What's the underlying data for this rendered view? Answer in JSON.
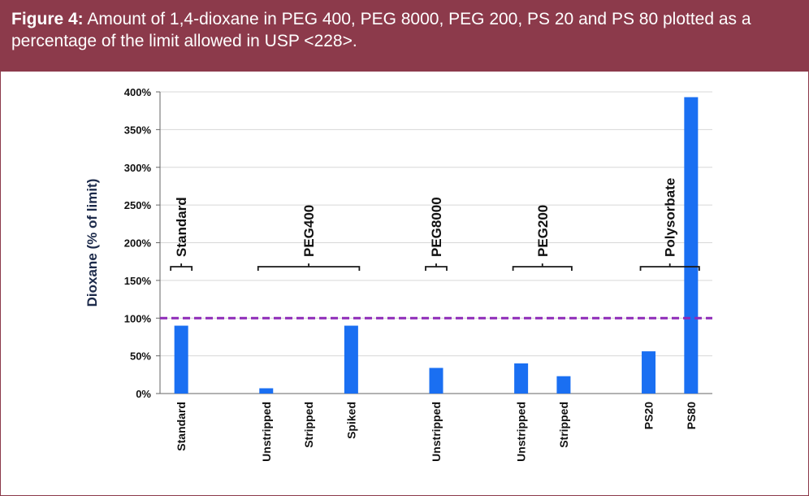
{
  "caption": {
    "label": "Figure 4:",
    "text": " Amount of 1,4-dioxane in PEG 400, PEG 8000, PEG 200, PS 20 and PS 80 plotted as a percentage of the limit allowed in USP <228>."
  },
  "colors": {
    "caption_bg": "#8c3a4b",
    "bar": "#1a6ff2",
    "limit_line": "#8e2ab8"
  },
  "chart_data": {
    "type": "bar",
    "ylabel": "Dioxane (% of limit)",
    "ylim": [
      0,
      400
    ],
    "yticks": [
      0,
      50,
      100,
      150,
      200,
      250,
      300,
      350,
      400
    ],
    "ytick_labels": [
      "0%",
      "50%",
      "100%",
      "150%",
      "200%",
      "250%",
      "300%",
      "350%",
      "400%"
    ],
    "grid": true,
    "categories": [
      "Standard",
      "",
      "Unstripped",
      "Stripped",
      "Spiked",
      "",
      "Unstripped",
      "",
      "Unstripped",
      "Stripped",
      "",
      "PS20",
      "PS80"
    ],
    "values": [
      90,
      null,
      7,
      0,
      90,
      null,
      34,
      null,
      40,
      23,
      null,
      56,
      393
    ],
    "limit_line": {
      "value": 100,
      "style": "dashed"
    },
    "groups": [
      {
        "label": "Standard",
        "from": 0,
        "to": 0
      },
      {
        "label": "PEG400",
        "from": 2,
        "to": 4
      },
      {
        "label": "PEG8000",
        "from": 6,
        "to": 6
      },
      {
        "label": "PEG200",
        "from": 8,
        "to": 9
      },
      {
        "label": "Polysorbate",
        "from": 11,
        "to": 12
      }
    ]
  }
}
